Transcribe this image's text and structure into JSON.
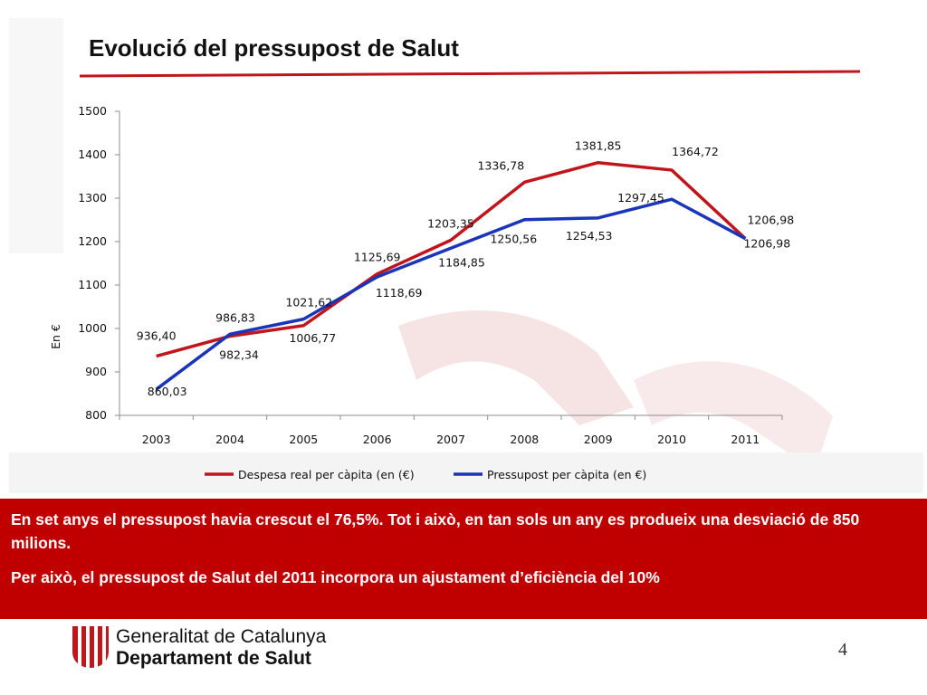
{
  "slide": {
    "title": "Evolució del pressupost de Salut",
    "page_number": "4"
  },
  "banner": {
    "line1": "En set anys el pressupost havia crescut el 76,5%. Tot i això, en tan sols un any es produeix una desviació de 850 milions.",
    "line2": "Per això, el pressupost de Salut del 2011 incorpora un ajustament d’eficiència del 10%"
  },
  "footer": {
    "org_name": "Generalitat de Catalunya",
    "department": "Departament de Salut"
  },
  "colors": {
    "accent_red": "#c00000",
    "series_red": "#c0151b",
    "series_blue": "#1a35b8"
  },
  "chart_data": {
    "type": "line",
    "title": "",
    "xlabel": "",
    "ylabel": "En €",
    "ylim": [
      800,
      1500
    ],
    "yticks": [
      "800",
      "900",
      "1000",
      "1100",
      "1200",
      "1300",
      "1400",
      "1500"
    ],
    "categories": [
      "2003",
      "2004",
      "2005",
      "2006",
      "2007",
      "2008",
      "2009",
      "2010",
      "2011"
    ],
    "legend_position": "bottom",
    "grid": false,
    "series": [
      {
        "name": "Despesa real per càpita (en (€)",
        "color": "#c0151b",
        "values": [
          936.4,
          982.34,
          1006.77,
          1125.69,
          1203.35,
          1336.78,
          1381.85,
          1364.72,
          1206.98
        ],
        "labels": [
          "936,40",
          "982,34",
          "1006,77",
          "1125,69",
          "1203,35",
          "1336,78",
          "1381,85",
          "1364,72",
          "1206,98"
        ]
      },
      {
        "name": "Pressupost per càpita (en €)",
        "color": "#1a35b8",
        "values": [
          860.03,
          986.83,
          1021.62,
          1118.69,
          1184.85,
          1250.56,
          1254.53,
          1297.45,
          1206.98
        ],
        "labels": [
          "860,03",
          "986,83",
          "1021,62",
          "1118,69",
          "1184,85",
          "1250,56",
          "1254,53",
          "1297,45",
          "1206,98"
        ]
      }
    ]
  }
}
